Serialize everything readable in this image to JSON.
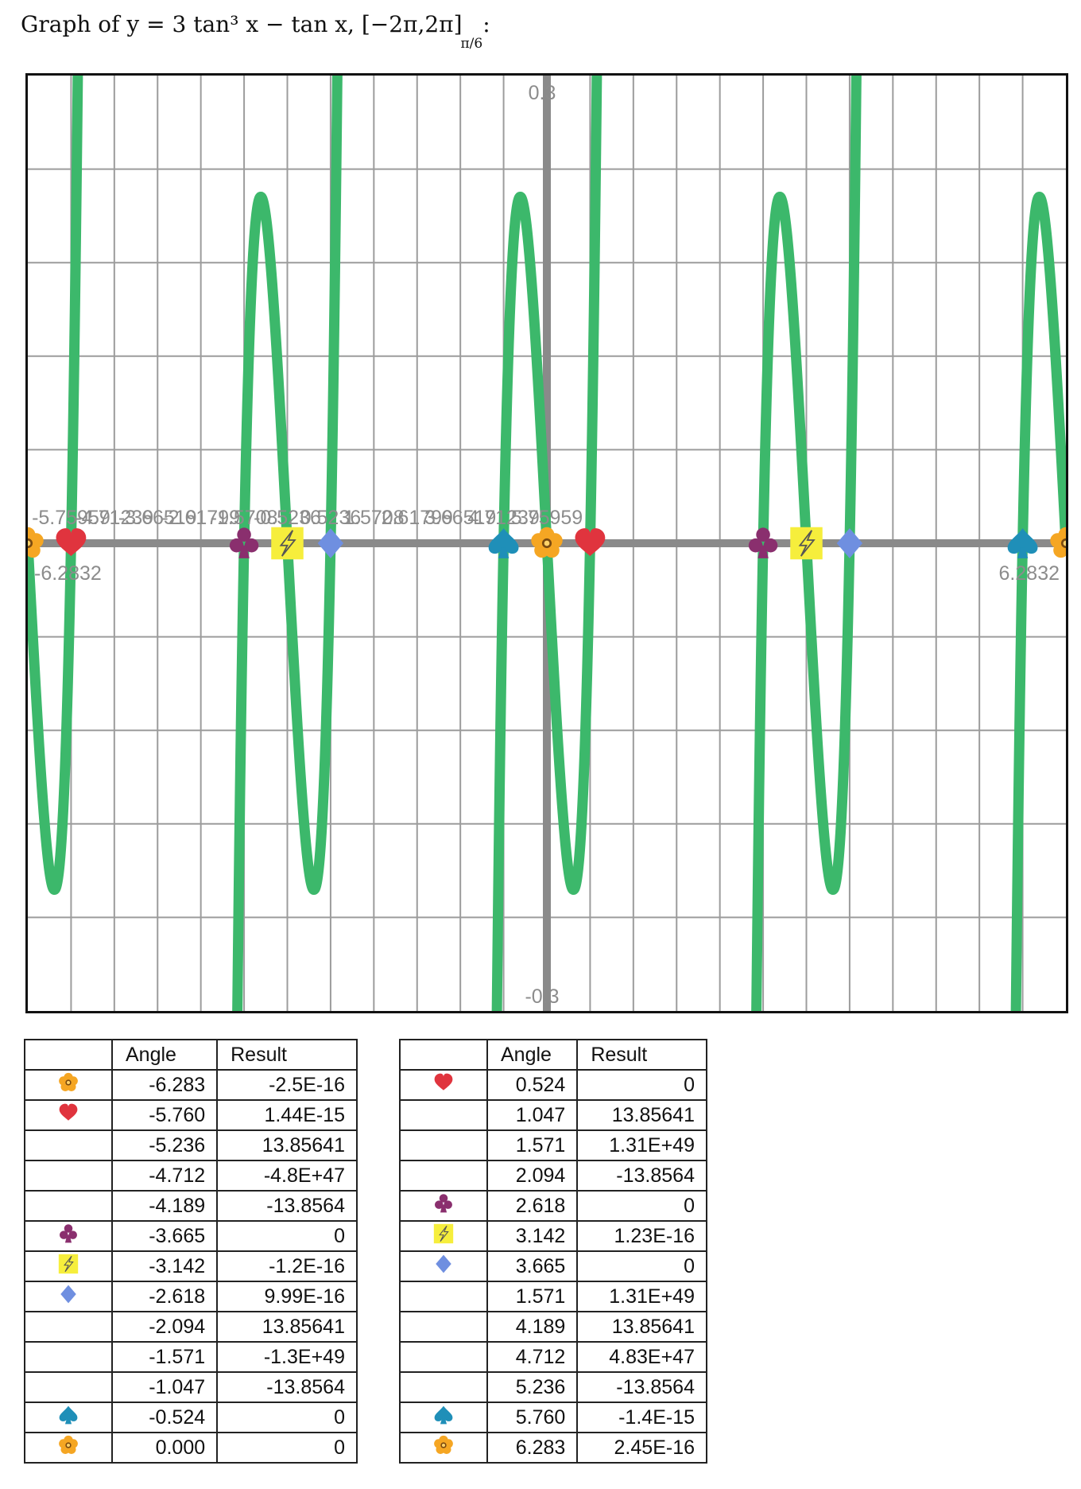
{
  "title": {
    "text": "Graph of  y = 3 tan³ x − tan x,  [−2π,2π]",
    "subscript": "π/6",
    "suffix": ":"
  },
  "icons": {
    "flower": {
      "name": "flower-icon",
      "color": "#f5a623"
    },
    "heart": {
      "name": "heart-icon",
      "color": "#e0343e"
    },
    "club": {
      "name": "club-icon",
      "color": "#8a2f6e"
    },
    "bolt": {
      "name": "lightning-icon",
      "color": "#f6ee3c"
    },
    "diamond": {
      "name": "diamond-icon",
      "color": "#6f8fe0"
    },
    "spade": {
      "name": "spade-icon",
      "color": "#1f8fb8"
    }
  },
  "chart_data": {
    "type": "line",
    "function": "y = 3 tan^3 x − tan x",
    "xlim": [
      -6.2832,
      6.2832
    ],
    "ylim": [
      -0.3,
      0.3
    ],
    "x_tick_step": 0.5236,
    "y_grid_step": 0.06,
    "x_tick_labels": [
      "-5.75959",
      "-4.71239",
      "-3.66519",
      "-2.61799",
      "-1.5708",
      "-0.5236",
      "0.5236",
      "1.5708",
      "2.61799",
      "3.66519",
      "4.71239",
      "5.75959"
    ],
    "x_min_label": "-6.2832",
    "x_max_label": "6.2832",
    "y_max_label": "0.3",
    "y_min_label": "-0.3",
    "line_color": "#3cb86b",
    "grid": true,
    "markers": [
      {
        "x": -6.2832,
        "y": 0,
        "icon": "flower"
      },
      {
        "x": -5.7596,
        "y": 0,
        "icon": "heart"
      },
      {
        "x": -3.6652,
        "y": 0,
        "icon": "club"
      },
      {
        "x": -3.1416,
        "y": 0,
        "icon": "bolt"
      },
      {
        "x": -2.618,
        "y": 0,
        "icon": "diamond"
      },
      {
        "x": -0.5236,
        "y": 0,
        "icon": "spade"
      },
      {
        "x": 0,
        "y": 0,
        "icon": "flower"
      },
      {
        "x": 0.5236,
        "y": 0,
        "icon": "heart"
      },
      {
        "x": 2.618,
        "y": 0,
        "icon": "club"
      },
      {
        "x": 3.1416,
        "y": 0,
        "icon": "bolt"
      },
      {
        "x": 3.6652,
        "y": 0,
        "icon": "diamond"
      },
      {
        "x": 5.7596,
        "y": 0,
        "icon": "spade"
      },
      {
        "x": 6.2832,
        "y": 0,
        "icon": "flower"
      }
    ]
  },
  "table1": {
    "headers": [
      "",
      "Angle",
      "Result"
    ],
    "rows": [
      {
        "icon": "flower",
        "angle": "-6.283",
        "result": "-2.5E-16"
      },
      {
        "icon": "heart",
        "angle": "-5.760",
        "result": "1.44E-15"
      },
      {
        "icon": "",
        "angle": "-5.236",
        "result": "13.85641"
      },
      {
        "icon": "",
        "angle": "-4.712",
        "result": "-4.8E+47"
      },
      {
        "icon": "",
        "angle": "-4.189",
        "result": "-13.8564"
      },
      {
        "icon": "club",
        "angle": "-3.665",
        "result": "0"
      },
      {
        "icon": "bolt",
        "angle": "-3.142",
        "result": "-1.2E-16"
      },
      {
        "icon": "diamond",
        "angle": "-2.618",
        "result": "9.99E-16"
      },
      {
        "icon": "",
        "angle": "-2.094",
        "result": "13.85641"
      },
      {
        "icon": "",
        "angle": "-1.571",
        "result": "-1.3E+49"
      },
      {
        "icon": "",
        "angle": "-1.047",
        "result": "-13.8564"
      },
      {
        "icon": "spade",
        "angle": "-0.524",
        "result": "0"
      },
      {
        "icon": "flower",
        "angle": "0.000",
        "result": "0"
      }
    ]
  },
  "table2": {
    "headers": [
      "",
      "Angle",
      "Result"
    ],
    "rows": [
      {
        "icon": "heart",
        "angle": "0.524",
        "result": "0"
      },
      {
        "icon": "",
        "angle": "1.047",
        "result": "13.85641"
      },
      {
        "icon": "",
        "angle": "1.571",
        "result": "1.31E+49"
      },
      {
        "icon": "",
        "angle": "2.094",
        "result": "-13.8564"
      },
      {
        "icon": "club",
        "angle": "2.618",
        "result": "0"
      },
      {
        "icon": "bolt",
        "angle": "3.142",
        "result": "1.23E-16"
      },
      {
        "icon": "diamond",
        "angle": "3.665",
        "result": "0"
      },
      {
        "icon": "",
        "angle": "1.571",
        "result": "1.31E+49"
      },
      {
        "icon": "",
        "angle": "4.189",
        "result": "13.85641"
      },
      {
        "icon": "",
        "angle": "4.712",
        "result": "4.83E+47"
      },
      {
        "icon": "",
        "angle": "5.236",
        "result": "-13.8564"
      },
      {
        "icon": "spade",
        "angle": "5.760",
        "result": "-1.4E-15"
      },
      {
        "icon": "flower",
        "angle": "6.283",
        "result": "2.45E-16"
      }
    ]
  }
}
